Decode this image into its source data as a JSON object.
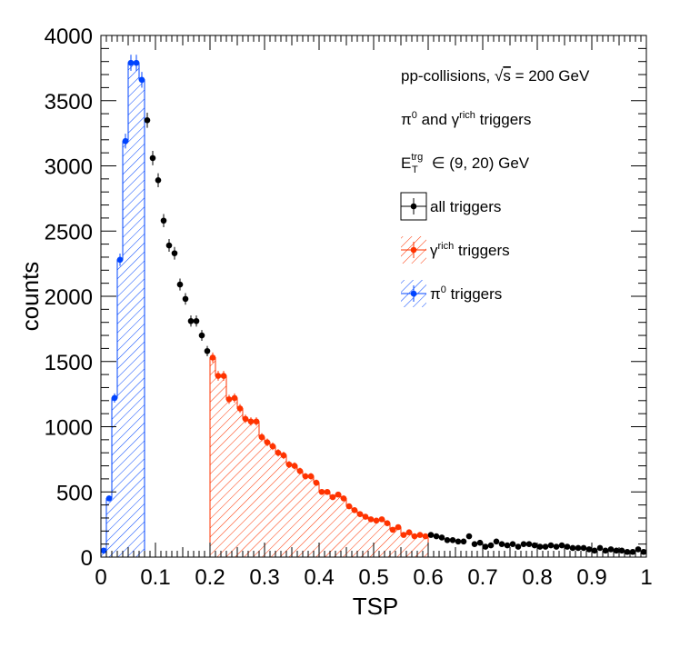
{
  "chart_data": {
    "type": "scatter",
    "xlabel": "TSP",
    "ylabel": "counts",
    "xlim": [
      0,
      1
    ],
    "ylim": [
      0,
      4000
    ],
    "x_ticks": [
      "0",
      "0.1",
      "0.2",
      "0.3",
      "0.4",
      "0.5",
      "0.6",
      "0.7",
      "0.8",
      "0.9",
      "1"
    ],
    "x_tick_values": [
      0,
      0.1,
      0.2,
      0.3,
      0.4,
      0.5,
      0.6,
      0.7,
      0.8,
      0.9,
      1.0
    ],
    "y_ticks": [
      "0",
      "500",
      "1000",
      "1500",
      "2000",
      "2500",
      "3000",
      "3500",
      "4000"
    ],
    "y_tick_values": [
      0,
      500,
      1000,
      1500,
      2000,
      2500,
      3000,
      3500,
      4000
    ],
    "bin_width": 0.01,
    "annotations": [
      {
        "main": "pp-collisions, ",
        "sqrt": "s",
        "tail": " = 200 GeV"
      },
      {
        "pi": "π",
        "pisup": "0",
        "mid": " and γ",
        "gsup": "rich",
        "tail": " triggers"
      },
      {
        "e": "E",
        "esup": "trg",
        "esub": "T",
        "tail": " ∈ (9, 20) GeV"
      }
    ],
    "legend": [
      {
        "label": "all triggers",
        "sup": ""
      },
      {
        "label": "γ",
        "sup": "rich",
        "tail": " triggers"
      },
      {
        "label": "π",
        "sup": "0",
        "tail": " triggers"
      }
    ],
    "colors": {
      "all": "#000000",
      "gamma": "#ff3300",
      "pi0": "#0044ff"
    },
    "series": [
      {
        "name": "π0 triggers",
        "x": [
          0.005,
          0.015,
          0.025,
          0.035,
          0.045,
          0.055,
          0.065,
          0.075
        ],
        "values": [
          50,
          450,
          1220,
          2280,
          3190,
          3790,
          3790,
          3660
        ]
      },
      {
        "name": "γrich triggers",
        "x": [
          0.205,
          0.215,
          0.225,
          0.235,
          0.245,
          0.255,
          0.265,
          0.275,
          0.285,
          0.295,
          0.305,
          0.315,
          0.325,
          0.335,
          0.345,
          0.355,
          0.365,
          0.375,
          0.385,
          0.395,
          0.405,
          0.415,
          0.425,
          0.435,
          0.445,
          0.455,
          0.465,
          0.475,
          0.485,
          0.495,
          0.505,
          0.515,
          0.525,
          0.535,
          0.545,
          0.555,
          0.565,
          0.575,
          0.585,
          0.595
        ],
        "values": [
          1530,
          1390,
          1390,
          1210,
          1220,
          1140,
          1060,
          1040,
          1040,
          920,
          880,
          850,
          800,
          780,
          710,
          700,
          660,
          620,
          620,
          570,
          500,
          500,
          460,
          480,
          450,
          390,
          360,
          330,
          310,
          290,
          280,
          290,
          260,
          210,
          230,
          170,
          190,
          160,
          170,
          160
        ]
      },
      {
        "name": "all triggers",
        "x": [
          0.085,
          0.095,
          0.105,
          0.115,
          0.125,
          0.135,
          0.145,
          0.155,
          0.165,
          0.175,
          0.185,
          0.195,
          0.605,
          0.615,
          0.625,
          0.635,
          0.645,
          0.655,
          0.665,
          0.675,
          0.685,
          0.695,
          0.705,
          0.715,
          0.725,
          0.735,
          0.745,
          0.755,
          0.765,
          0.775,
          0.785,
          0.795,
          0.805,
          0.815,
          0.825,
          0.835,
          0.845,
          0.855,
          0.865,
          0.875,
          0.885,
          0.895,
          0.905,
          0.915,
          0.925,
          0.935,
          0.945,
          0.955,
          0.965,
          0.975,
          0.985,
          0.995
        ],
        "values": [
          3350,
          3060,
          2890,
          2580,
          2390,
          2330,
          2090,
          1980,
          1810,
          1810,
          1700,
          1580,
          170,
          160,
          150,
          130,
          130,
          120,
          120,
          160,
          100,
          110,
          80,
          90,
          120,
          100,
          90,
          100,
          80,
          100,
          100,
          90,
          80,
          80,
          90,
          80,
          90,
          80,
          70,
          70,
          70,
          60,
          50,
          70,
          50,
          60,
          50,
          50,
          40,
          40,
          60,
          40
        ]
      }
    ]
  }
}
